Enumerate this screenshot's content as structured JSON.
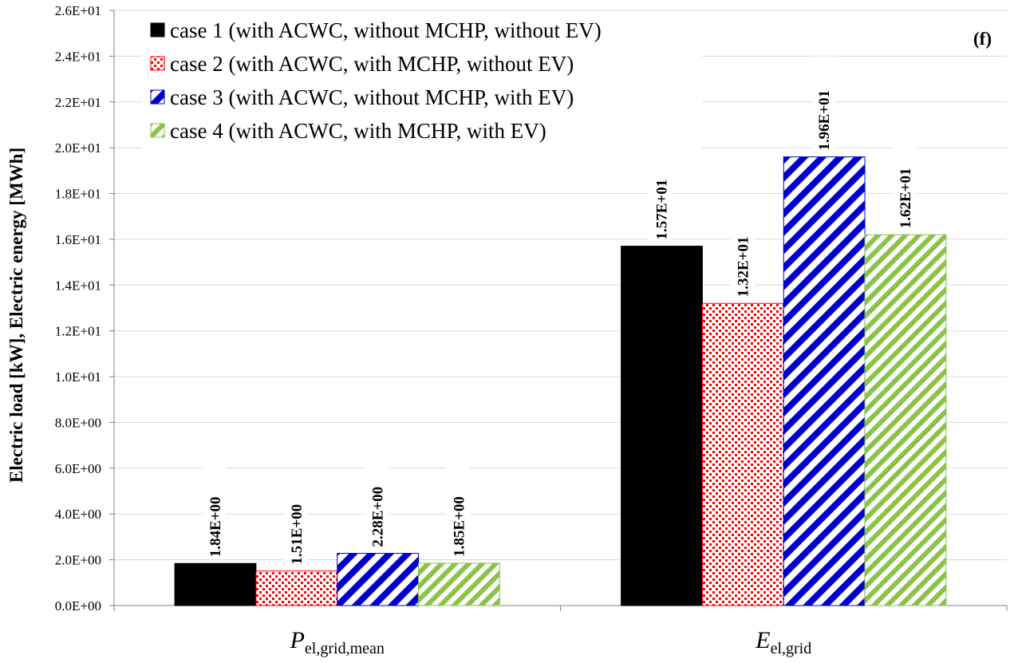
{
  "chart_data": {
    "type": "bar",
    "panel_label": "(f)",
    "ylabel": "Electric load [kW], Electric energy [MWh]",
    "ylim": [
      0,
      26
    ],
    "yticks": [
      0,
      2,
      4,
      6,
      8,
      10,
      12,
      14,
      16,
      18,
      20,
      22,
      24,
      26
    ],
    "ytick_labels": [
      "0.0E+00",
      "2.0E+00",
      "4.0E+00",
      "6.0E+00",
      "8.0E+00",
      "1.0E+01",
      "1.2E+01",
      "1.4E+01",
      "1.6E+01",
      "1.8E+01",
      "2.0E+01",
      "2.2E+01",
      "2.4E+01",
      "2.6E+01"
    ],
    "grid": true,
    "legend_position": "top-left",
    "categories": [
      {
        "main": "P",
        "sub": "el,grid,mean"
      },
      {
        "main": "E",
        "sub": "el,grid"
      }
    ],
    "series": [
      {
        "name": "case 1 (with ACWC, without MCHP, without EV)",
        "values": [
          1.84,
          15.7
        ],
        "labels": [
          "1.84E+00",
          "1.57E+01"
        ],
        "color": "#000000",
        "pattern": "solid"
      },
      {
        "name": "case 2 (with ACWC, with MCHP, without  EV)",
        "values": [
          1.51,
          13.2
        ],
        "labels": [
          "1.51E+00",
          "1.32E+01"
        ],
        "color": "#ff0000",
        "pattern": "dots"
      },
      {
        "name": "case 3 (with ACWC, without MCHP, with EV)",
        "values": [
          2.28,
          19.6
        ],
        "labels": [
          "2.28E+00",
          "1.96E+01"
        ],
        "color": "#0000cc",
        "pattern": "diagonal-wide"
      },
      {
        "name": "case 4 (with ACWC, with MCHP, with EV)",
        "values": [
          1.85,
          16.2
        ],
        "labels": [
          "1.85E+00",
          "1.62E+01"
        ],
        "color": "#8bc34a",
        "pattern": "diagonal"
      }
    ]
  }
}
